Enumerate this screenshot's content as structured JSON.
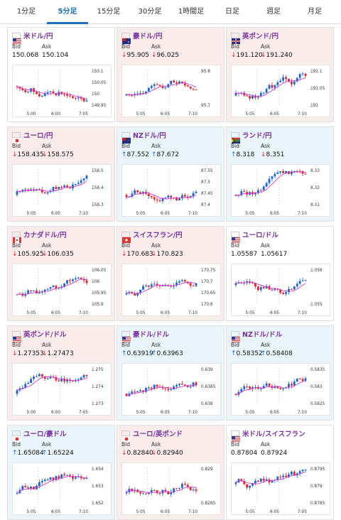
{
  "tabs": [
    "1分足",
    "5分足",
    "15分足",
    "30分足",
    "1時間足",
    "日足",
    "週足",
    "月足"
  ],
  "active_tab": 1,
  "labels": {
    "bid": "Bid",
    "ask": "Ask"
  },
  "colors": {
    "up": "#1a64d6",
    "down": "#e8222a",
    "title": "#7a2fa6",
    "ma": "#d23ad6"
  },
  "cards": [
    {
      "title": "米ドル/円",
      "dir": "flat",
      "bid": "150.068",
      "ask": "150.104",
      "bid_arrow": "",
      "ask_arrow": "",
      "flag": "us",
      "yticks": [
        "150.1",
        "150.05",
        "150",
        "149.95"
      ],
      "xticks": [
        "5:00",
        "6:00",
        "7:05"
      ]
    },
    {
      "title": "豪ドル/円",
      "dir": "down",
      "bid": "95.905",
      "ask": "96.025",
      "bid_arrow": "↓",
      "ask_arrow": "↓",
      "flag": "au",
      "yticks": [
        "95.8",
        "95.7"
      ],
      "xticks": [
        "5:05",
        "6:05",
        "7:10"
      ]
    },
    {
      "title": "英ポンド/円",
      "dir": "down",
      "bid": "191.120",
      "ask": "191.240",
      "bid_arrow": "↓",
      "ask_arrow": "↓",
      "flag": "gb",
      "yticks": [
        "191.1",
        "191.05",
        "191"
      ],
      "xticks": [
        "5:05",
        "6:05",
        "7:10"
      ]
    },
    {
      "title": "ユーロ/円",
      "dir": "down",
      "bid": "158.435",
      "ask": "158.575",
      "bid_arrow": "↓",
      "ask_arrow": "↓",
      "flag": "eu",
      "yticks": [
        "158.5",
        "158.4",
        "158.3"
      ],
      "xticks": [
        "5:05",
        "6:05",
        "7:10"
      ]
    },
    {
      "title": "NZドル/円",
      "dir": "up",
      "bid": "87.552",
      "ask": "87.672",
      "bid_arrow": "↑",
      "ask_arrow": "↑",
      "flag": "nz",
      "yticks": [
        "87.55",
        "87.5",
        "87.45",
        "87.4"
      ],
      "xticks": [
        "5:05",
        "6:05",
        "7:10"
      ]
    },
    {
      "title": "ランド/円",
      "dir": "up",
      "bid": "8.318",
      "ask": "8.351",
      "bid_arrow": "↑",
      "ask_arrow": "↓",
      "flag": "za",
      "yticks": [
        "8.33",
        "8.32",
        "8.31"
      ],
      "xticks": [
        "5:05",
        "6:05",
        "7:10"
      ]
    },
    {
      "title": "カナダドル/円",
      "dir": "down",
      "bid": "105.925",
      "ask": "106.035",
      "bid_arrow": "↓",
      "ask_arrow": "↓",
      "flag": "ca",
      "yticks": [
        "106.05",
        "106",
        "105.95",
        "105.9"
      ],
      "xticks": [
        "5:05",
        "6:05",
        "7:10"
      ]
    },
    {
      "title": "スイスフラン/円",
      "dir": "down",
      "bid": "170.683",
      "ask": "170.823",
      "bid_arrow": "↓",
      "ask_arrow": "↓",
      "flag": "ch",
      "yticks": [
        "170.75",
        "170.7",
        "170.65",
        "170.6"
      ],
      "xticks": [
        "5:05",
        "6:05",
        "7:10"
      ]
    },
    {
      "title": "ユーロ/ドル",
      "dir": "flat",
      "bid": "1.05587",
      "ask": "1.05617",
      "bid_arrow": "",
      "ask_arrow": "",
      "flag": "us",
      "yticks": [
        "1.056",
        "1.055"
      ],
      "xticks": [
        "5:05",
        "6:05",
        "7:10"
      ]
    },
    {
      "title": "英ポンド/ドル",
      "dir": "down",
      "bid": "1.27353",
      "ask": "1.27473",
      "bid_arrow": "↓",
      "ask_arrow": "↓",
      "flag": "us",
      "yticks": [
        "1.275",
        "1.274",
        "1.273"
      ],
      "xticks": [
        "5:00",
        "6:00",
        "7:05"
      ]
    },
    {
      "title": "豪ドル/ドル",
      "dir": "up",
      "bid": "0.63919",
      "ask": "0.63963",
      "bid_arrow": "↑",
      "ask_arrow": "↑",
      "flag": "us",
      "yticks": [
        "0.639",
        "0.6385",
        "0.638"
      ],
      "xticks": [
        "5:05",
        "6:05",
        "7:10"
      ]
    },
    {
      "title": "NZドル/ドル",
      "dir": "up",
      "bid": "0.58352",
      "ask": "0.58408",
      "bid_arrow": "↑",
      "ask_arrow": "↑",
      "flag": "us",
      "yticks": [
        "0.5835",
        "0.583",
        "0.5825"
      ],
      "xticks": [
        "5:05",
        "6:05",
        "7:10"
      ]
    },
    {
      "title": "ユーロ/豪ドル",
      "dir": "up",
      "bid": "1.65084",
      "ask": "1.65224",
      "bid_arrow": "↑",
      "ask_arrow": "↑",
      "flag": "eu",
      "yticks": [
        "1.654",
        "1.653",
        "1.652"
      ],
      "xticks": [
        "5:05",
        "6:05",
        "7:10"
      ]
    },
    {
      "title": "ユーロ/英ポンド",
      "dir": "down",
      "bid": "0.82840",
      "ask": "0.82940",
      "bid_arrow": "↓",
      "ask_arrow": "↓",
      "flag": "eu",
      "yticks": [
        "0.829",
        "0.8285"
      ],
      "xticks": [
        "5:05",
        "6:05",
        "7:10"
      ]
    },
    {
      "title": "米ドル/スイスフラン",
      "dir": "flat",
      "bid": "0.87804",
      "ask": "0.87924",
      "bid_arrow": "",
      "ask_arrow": "",
      "flag": "us",
      "yticks": [
        "0.8795",
        "0.879",
        "0.8785"
      ],
      "xticks": [
        "5:05",
        "6:05",
        "7:05"
      ]
    }
  ]
}
